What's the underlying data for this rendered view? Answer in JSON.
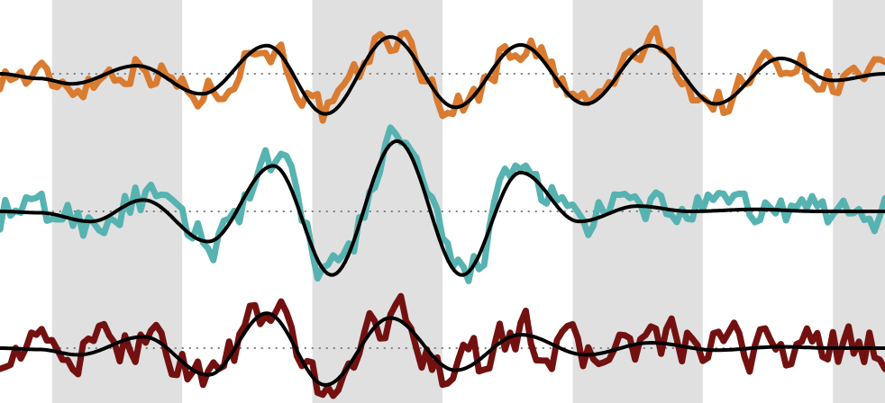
{
  "chart_data": {
    "type": "line",
    "title": "",
    "xlabel": "",
    "ylabel": "",
    "x_range": [
      0,
      6.8
    ],
    "grid": false,
    "legend": "none",
    "shaded_bands_x": [
      [
        0.4,
        1.4
      ],
      [
        2.4,
        3.4
      ],
      [
        4.4,
        5.4
      ],
      [
        6.4,
        6.8
      ]
    ],
    "noisy_sample_count": 170,
    "smooth_color": "#000000",
    "baseline_style": "dotted",
    "baseline_color": "#808080",
    "band_color": "#e0e0e0",
    "series": [
      {
        "color": "#d97b30",
        "panel_y_range": [
          -1.1,
          1.1
        ],
        "smooth_x": [
          0,
          0.3,
          0.55,
          1.05,
          1.55,
          2.05,
          2.5,
          3.0,
          3.5,
          4.0,
          4.5,
          5.0,
          5.5,
          6.0,
          6.4,
          6.8
        ],
        "smooth_y": [
          0.0,
          -0.07,
          -0.15,
          0.12,
          -0.3,
          0.42,
          -0.6,
          0.55,
          -0.5,
          0.43,
          -0.45,
          0.42,
          -0.45,
          0.23,
          -0.1,
          0.0
        ],
        "noise_amp": 0.22
      },
      {
        "color": "#56b3b1",
        "panel_y_range": [
          -1.1,
          1.1
        ],
        "smooth_x": [
          0,
          0.3,
          0.7,
          1.1,
          1.6,
          2.1,
          2.55,
          3.05,
          3.55,
          4.0,
          4.45,
          4.9,
          5.3,
          5.8,
          6.3,
          6.8
        ],
        "smooth_y": [
          0.0,
          -0.02,
          -0.15,
          0.17,
          -0.45,
          0.68,
          -0.95,
          1.05,
          -0.95,
          0.58,
          -0.15,
          0.08,
          0.0,
          0.03,
          0.0,
          0.0
        ],
        "noise_amp": 0.26
      },
      {
        "color": "#731111",
        "panel_y_range": [
          -1.1,
          1.1
        ],
        "smooth_x": [
          0,
          0.3,
          0.6,
          1.1,
          1.6,
          2.05,
          2.5,
          3.0,
          3.5,
          4.0,
          4.5,
          5.0,
          5.5,
          6.0,
          6.4,
          6.8
        ],
        "smooth_y": [
          0.0,
          -0.02,
          -0.1,
          0.17,
          -0.4,
          0.52,
          -0.55,
          0.45,
          -0.33,
          0.2,
          -0.1,
          0.08,
          -0.03,
          0.02,
          0.0,
          0.0
        ],
        "noise_amp": 0.3
      }
    ]
  }
}
